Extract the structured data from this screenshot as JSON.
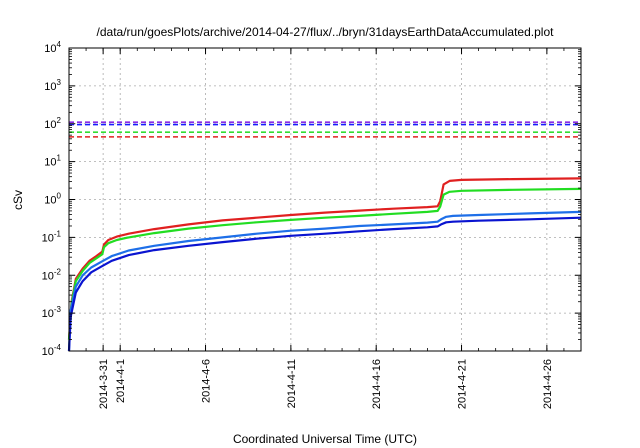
{
  "chart_data": {
    "type": "line",
    "title": "/data/run/goesPlots/archive/2014-04-27/flux/../bryn/31daysEarthDataAccumulated.plot",
    "xlabel": "Coordinated Universal Time (UTC)",
    "ylabel": "cSv",
    "y_scale": "log",
    "ylim_exponents": [
      -4,
      4
    ],
    "xlim_days": [
      29,
      59
    ],
    "x_ticks": [
      {
        "label": "2014-3-31",
        "day": 31
      },
      {
        "label": "2014-4-1",
        "day": 32
      },
      {
        "label": "2014-4-6",
        "day": 37
      },
      {
        "label": "2014-4-11",
        "day": 42
      },
      {
        "label": "2014-4-16",
        "day": 47
      },
      {
        "label": "2014-4-21",
        "day": 52
      },
      {
        "label": "2014-4-26",
        "day": 57
      }
    ],
    "grid": true,
    "thresholds": [
      {
        "color": "#8a2be2",
        "value": 110
      },
      {
        "color": "#1a1aff",
        "value": 95
      },
      {
        "color": "#33dd33",
        "value": 60
      },
      {
        "color": "#e02020",
        "value": 45
      }
    ],
    "series": [
      {
        "color": "#e02020",
        "points": [
          [
            29,
            0.0002
          ],
          [
            29.15,
            0.002
          ],
          [
            29.4,
            0.008
          ],
          [
            29.8,
            0.015
          ],
          [
            30.2,
            0.024
          ],
          [
            30.6,
            0.032
          ],
          [
            30.95,
            0.042
          ],
          [
            31.05,
            0.065
          ],
          [
            31.3,
            0.085
          ],
          [
            31.8,
            0.105
          ],
          [
            32.5,
            0.125
          ],
          [
            34,
            0.165
          ],
          [
            36,
            0.22
          ],
          [
            38,
            0.28
          ],
          [
            40,
            0.33
          ],
          [
            42,
            0.39
          ],
          [
            44,
            0.45
          ],
          [
            46,
            0.51
          ],
          [
            48,
            0.57
          ],
          [
            50,
            0.63
          ],
          [
            50.6,
            0.66
          ],
          [
            50.75,
            0.9
          ],
          [
            50.95,
            2.5
          ],
          [
            51.3,
            3.1
          ],
          [
            52,
            3.3
          ],
          [
            55,
            3.45
          ],
          [
            59,
            3.6
          ]
        ]
      },
      {
        "color": "#22dd22",
        "points": [
          [
            29,
            0.0002
          ],
          [
            29.15,
            0.0018
          ],
          [
            29.4,
            0.007
          ],
          [
            29.8,
            0.013
          ],
          [
            30.2,
            0.021
          ],
          [
            30.6,
            0.028
          ],
          [
            30.95,
            0.036
          ],
          [
            31.05,
            0.055
          ],
          [
            31.3,
            0.07
          ],
          [
            31.8,
            0.085
          ],
          [
            32.5,
            0.1
          ],
          [
            34,
            0.13
          ],
          [
            36,
            0.17
          ],
          [
            38,
            0.21
          ],
          [
            40,
            0.25
          ],
          [
            42,
            0.29
          ],
          [
            44,
            0.33
          ],
          [
            46,
            0.37
          ],
          [
            48,
            0.42
          ],
          [
            50,
            0.47
          ],
          [
            50.6,
            0.5
          ],
          [
            50.75,
            0.65
          ],
          [
            50.95,
            1.35
          ],
          [
            51.3,
            1.6
          ],
          [
            52,
            1.7
          ],
          [
            55,
            1.8
          ],
          [
            59,
            1.9
          ]
        ]
      },
      {
        "color": "#1e6fe8",
        "points": [
          [
            29,
            0.0001
          ],
          [
            29.1,
            0.0012
          ],
          [
            29.4,
            0.005
          ],
          [
            29.8,
            0.01
          ],
          [
            30.3,
            0.016
          ],
          [
            31,
            0.024
          ],
          [
            31.5,
            0.032
          ],
          [
            32.5,
            0.045
          ],
          [
            34,
            0.06
          ],
          [
            36,
            0.08
          ],
          [
            38,
            0.1
          ],
          [
            40,
            0.125
          ],
          [
            42,
            0.15
          ],
          [
            44,
            0.17
          ],
          [
            46,
            0.2
          ],
          [
            48,
            0.22
          ],
          [
            50,
            0.245
          ],
          [
            50.6,
            0.26
          ],
          [
            50.8,
            0.3
          ],
          [
            51.1,
            0.35
          ],
          [
            51.5,
            0.37
          ],
          [
            53,
            0.39
          ],
          [
            56,
            0.43
          ],
          [
            59,
            0.47
          ]
        ]
      },
      {
        "color": "#0a14d0",
        "points": [
          [
            29,
            0.0001
          ],
          [
            29.1,
            0.0008
          ],
          [
            29.4,
            0.0035
          ],
          [
            29.8,
            0.007
          ],
          [
            30.3,
            0.012
          ],
          [
            31,
            0.018
          ],
          [
            31.5,
            0.024
          ],
          [
            32.5,
            0.034
          ],
          [
            34,
            0.046
          ],
          [
            36,
            0.06
          ],
          [
            38,
            0.075
          ],
          [
            40,
            0.092
          ],
          [
            42,
            0.11
          ],
          [
            44,
            0.125
          ],
          [
            46,
            0.145
          ],
          [
            48,
            0.165
          ],
          [
            50,
            0.185
          ],
          [
            50.6,
            0.195
          ],
          [
            50.8,
            0.22
          ],
          [
            51.1,
            0.25
          ],
          [
            51.5,
            0.26
          ],
          [
            53,
            0.275
          ],
          [
            56,
            0.3
          ],
          [
            59,
            0.33
          ]
        ]
      }
    ]
  }
}
